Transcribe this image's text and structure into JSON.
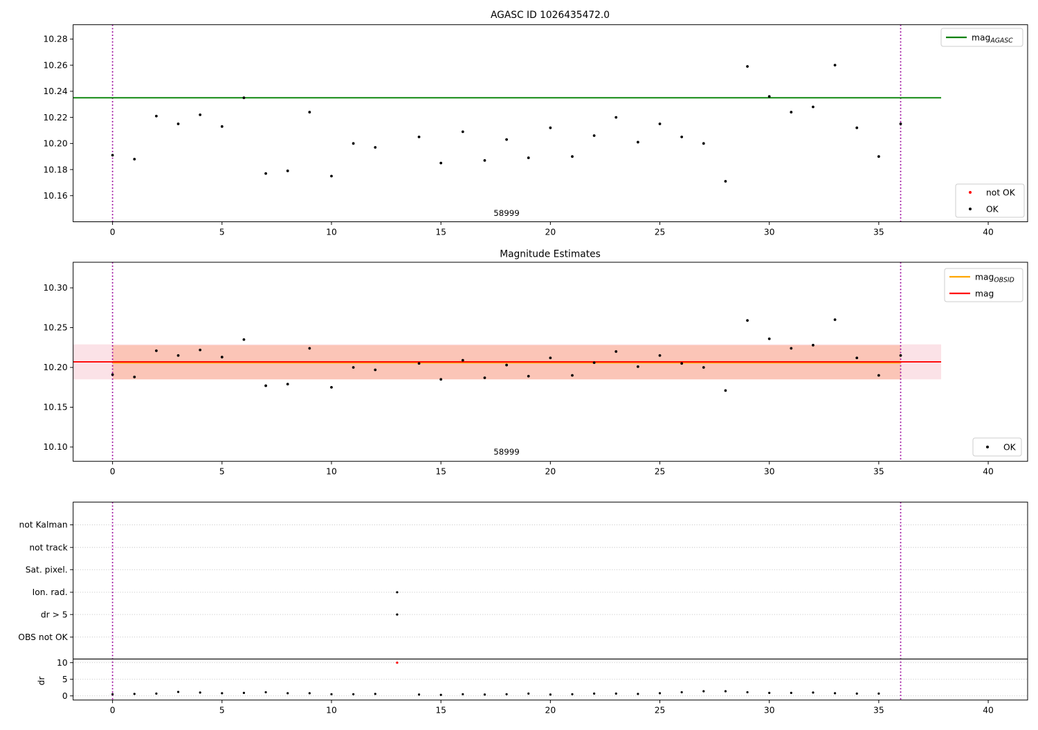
{
  "chart_data": [
    {
      "id": "agasc-mag-plot",
      "type": "scatter",
      "title": "AGASC ID 1026435472.0",
      "xlim": [
        -1.8,
        41.8
      ],
      "ylim": [
        10.14,
        10.291
      ],
      "xticks": [
        0,
        5,
        10,
        15,
        20,
        25,
        30,
        35,
        40
      ],
      "yticks": [
        10.16,
        10.18,
        10.2,
        10.22,
        10.24,
        10.26,
        10.28
      ],
      "grid": false,
      "hline": {
        "label": "mag",
        "label_sub": "AGASC",
        "y": 10.235,
        "color": "#008000",
        "xrange": [
          -1.8,
          37.85
        ]
      },
      "vlines": {
        "x": [
          0,
          36
        ],
        "color": "#990099",
        "style": "dotted"
      },
      "annotation": {
        "text": "58999",
        "x": 18
      },
      "series": [
        {
          "name": "not OK",
          "color": "#ff0000",
          "points": []
        },
        {
          "name": "OK",
          "color": "#000000",
          "points": [
            [
              0,
              10.191
            ],
            [
              1,
              10.188
            ],
            [
              2,
              10.221
            ],
            [
              3,
              10.215
            ],
            [
              4,
              10.222
            ],
            [
              5,
              10.213
            ],
            [
              6,
              10.235
            ],
            [
              7,
              10.177
            ],
            [
              8,
              10.179
            ],
            [
              9,
              10.224
            ],
            [
              10,
              10.175
            ],
            [
              11,
              10.2
            ],
            [
              12,
              10.197
            ],
            [
              14,
              10.205
            ],
            [
              15,
              10.185
            ],
            [
              16,
              10.209
            ],
            [
              17,
              10.187
            ],
            [
              18,
              10.203
            ],
            [
              19,
              10.189
            ],
            [
              20,
              10.212
            ],
            [
              21,
              10.19
            ],
            [
              22,
              10.206
            ],
            [
              23,
              10.22
            ],
            [
              24,
              10.201
            ],
            [
              25,
              10.215
            ],
            [
              26,
              10.205
            ],
            [
              27,
              10.2
            ],
            [
              28,
              10.171
            ],
            [
              29,
              10.259
            ],
            [
              30,
              10.236
            ],
            [
              31,
              10.224
            ],
            [
              32,
              10.228
            ],
            [
              33,
              10.26
            ],
            [
              34,
              10.212
            ],
            [
              35,
              10.19
            ],
            [
              36,
              10.215
            ]
          ]
        }
      ],
      "legend_top_right": {
        "items": [
          {
            "marker": "line",
            "color": "#008000",
            "label": "mag",
            "sub": "AGASC"
          }
        ]
      },
      "legend_bottom_right": {
        "items": [
          {
            "marker": "dot",
            "color": "#ff0000",
            "label": "not OK"
          },
          {
            "marker": "dot",
            "color": "#000000",
            "label": "OK"
          }
        ]
      }
    },
    {
      "id": "magnitude-estimates-plot",
      "type": "scatter",
      "title": "Magnitude Estimates",
      "xlim": [
        -1.8,
        41.8
      ],
      "ylim": [
        10.082,
        10.3322
      ],
      "xticks": [
        0,
        5,
        10,
        15,
        20,
        25,
        30,
        35,
        40
      ],
      "yticks": [
        10.1,
        10.15,
        10.2,
        10.25,
        10.3
      ],
      "grid": false,
      "mag_line": {
        "label": "mag",
        "y": 10.207,
        "color": "#ff0000",
        "xrange": [
          -1.8,
          37.85
        ]
      },
      "obsid_line": {
        "label": "mag",
        "label_sub": "OBSID",
        "y": 10.2065,
        "color": "#ffa500",
        "xrange": [
          0,
          36
        ]
      },
      "band_outer": {
        "yrange": [
          10.185,
          10.229
        ],
        "xrange": [
          -1.8,
          37.85
        ],
        "color": "rgba(220,20,60,0.12)"
      },
      "band_obsid": {
        "yrange": [
          10.185,
          10.228
        ],
        "xrange": [
          0,
          36
        ],
        "color": "rgba(250,110,40,0.25)"
      },
      "vlines": {
        "x": [
          0,
          36
        ],
        "color": "#990099",
        "style": "dotted"
      },
      "annotation": {
        "text": "58999",
        "x": 18
      },
      "series": [
        {
          "name": "OK",
          "color": "#000000",
          "points": [
            [
              0,
              10.191
            ],
            [
              1,
              10.188
            ],
            [
              2,
              10.221
            ],
            [
              3,
              10.215
            ],
            [
              4,
              10.222
            ],
            [
              5,
              10.213
            ],
            [
              6,
              10.235
            ],
            [
              7,
              10.177
            ],
            [
              8,
              10.179
            ],
            [
              9,
              10.224
            ],
            [
              10,
              10.175
            ],
            [
              11,
              10.2
            ],
            [
              12,
              10.197
            ],
            [
              14,
              10.205
            ],
            [
              15,
              10.185
            ],
            [
              16,
              10.209
            ],
            [
              17,
              10.187
            ],
            [
              18,
              10.203
            ],
            [
              19,
              10.189
            ],
            [
              20,
              10.212
            ],
            [
              21,
              10.19
            ],
            [
              22,
              10.206
            ],
            [
              23,
              10.22
            ],
            [
              24,
              10.201
            ],
            [
              25,
              10.215
            ],
            [
              26,
              10.205
            ],
            [
              27,
              10.2
            ],
            [
              28,
              10.171
            ],
            [
              29,
              10.259
            ],
            [
              30,
              10.236
            ],
            [
              31,
              10.224
            ],
            [
              32,
              10.228
            ],
            [
              33,
              10.26
            ],
            [
              34,
              10.212
            ],
            [
              35,
              10.19
            ],
            [
              36,
              10.215
            ]
          ]
        }
      ],
      "legend_top_right": {
        "items": [
          {
            "marker": "line",
            "color": "#ffa500",
            "label": "mag",
            "sub": "OBSID"
          },
          {
            "marker": "line",
            "color": "#ff0000",
            "label": "mag"
          }
        ]
      },
      "legend_bottom_right": {
        "items": [
          {
            "marker": "dot",
            "color": "#000000",
            "label": "OK"
          }
        ]
      }
    },
    {
      "id": "flags-dr-plot",
      "type": "flags",
      "xlim": [
        -1.8,
        41.8
      ],
      "ylim": [
        -1.25,
        58.33
      ],
      "xticks": [
        0,
        5,
        10,
        15,
        20,
        25,
        30,
        35,
        40
      ],
      "grid": true,
      "ylabel": "dr",
      "flag_rows": [
        {
          "label": "not Kalman",
          "y": 51.5
        },
        {
          "label": "not track",
          "y": 44.7
        },
        {
          "label": "Sat. pixel.",
          "y": 38.0
        },
        {
          "label": "Ion. rad.",
          "y": 31.2
        },
        {
          "label": "dr > 5",
          "y": 24.5
        },
        {
          "label": "OBS not OK",
          "y": 17.7
        }
      ],
      "dr_ticks": [
        {
          "label": "10",
          "y": 10
        },
        {
          "label": "5",
          "y": 5
        },
        {
          "label": "0",
          "y": 0
        }
      ],
      "separator_y": 11.1,
      "vlines": {
        "x": [
          0,
          36
        ],
        "color": "#990099",
        "style": "dotted"
      },
      "series": [
        {
          "name": "dr OK",
          "color": "#000000",
          "points": [
            [
              0,
              0.5
            ],
            [
              1,
              0.6
            ],
            [
              2,
              0.7
            ],
            [
              3,
              1.2
            ],
            [
              4,
              1.0
            ],
            [
              5,
              0.8
            ],
            [
              6,
              0.9
            ],
            [
              7,
              1.1
            ],
            [
              8,
              0.8
            ],
            [
              9,
              0.8
            ],
            [
              10,
              0.5
            ],
            [
              11,
              0.5
            ],
            [
              12,
              0.6
            ],
            [
              14,
              0.4
            ],
            [
              15,
              0.3
            ],
            [
              16,
              0.5
            ],
            [
              17,
              0.4
            ],
            [
              18,
              0.5
            ],
            [
              19,
              0.7
            ],
            [
              20,
              0.4
            ],
            [
              21,
              0.5
            ],
            [
              22,
              0.7
            ],
            [
              23,
              0.7
            ],
            [
              24,
              0.6
            ],
            [
              25,
              0.8
            ],
            [
              26,
              1.1
            ],
            [
              27,
              1.4
            ],
            [
              28,
              1.4
            ],
            [
              29,
              1.1
            ],
            [
              30,
              0.9
            ],
            [
              31,
              0.9
            ],
            [
              32,
              1.0
            ],
            [
              33,
              0.8
            ],
            [
              34,
              0.7
            ],
            [
              35,
              0.7
            ]
          ]
        },
        {
          "name": "dr not OK",
          "color": "#ff0000",
          "points": [
            [
              13,
              10
            ]
          ]
        }
      ],
      "flag_points": [
        {
          "row": "Ion. rad.",
          "x": [
            13
          ],
          "color": "#000000"
        },
        {
          "row": "dr > 5",
          "x": [
            13
          ],
          "color": "#000000"
        }
      ]
    }
  ],
  "colors": {
    "agasc_line": "#008000",
    "mag_line": "#ff0000",
    "obsid_line": "#ffa500",
    "obsid_boundary": "#990099",
    "gridline": "#b8b8b8"
  }
}
